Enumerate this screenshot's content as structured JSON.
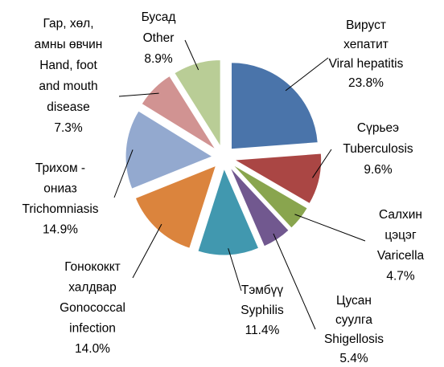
{
  "chart_data": {
    "type": "pie",
    "categories": [
      [
        "Вируст",
        "хепатит",
        "Viral hepatitis"
      ],
      [
        "Сүрьеэ",
        "Tuberculosis"
      ],
      [
        "Салхин",
        "цэцэг",
        "Varicella"
      ],
      [
        "Цусан",
        "суулга",
        "Shigellosis"
      ],
      [
        "Тэмбүү",
        "Syphilis"
      ],
      [
        "Гонококкт",
        "халдвар",
        "Gonococcal",
        "infection"
      ],
      [
        "Трихом -",
        "ониаз",
        "Trichomniasis"
      ],
      [
        "Гар, хөл,",
        "амны өвчин",
        "Hand, foot",
        "and mouth",
        "disease"
      ],
      [
        "Бусад",
        "Other"
      ]
    ],
    "values": [
      23.8,
      9.6,
      4.7,
      5.4,
      11.4,
      14.0,
      14.9,
      7.3,
      8.9
    ],
    "value_labels": [
      "23.8%",
      "9.6%",
      "4.7%",
      "5.4%",
      "11.4%",
      "14.0%",
      "14.9%",
      "7.3%",
      "8.9%"
    ],
    "colors": [
      "#4a74aa",
      "#aa4644",
      "#89a54e",
      "#71588f",
      "#4198af",
      "#db843d",
      "#93a9cf",
      "#d19392",
      "#b9cd96"
    ]
  }
}
